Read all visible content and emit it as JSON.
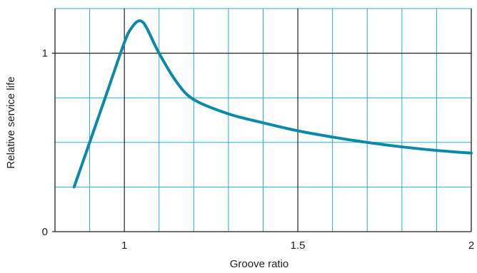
{
  "chart_data": {
    "type": "line",
    "title": "",
    "xlabel": "Groove ratio",
    "ylabel": "Relative service life",
    "xlim": [
      0.8,
      2.0
    ],
    "ylim": [
      0,
      1.25
    ],
    "x_ticks": [
      {
        "value": 1.0,
        "label": "1"
      },
      {
        "value": 1.5,
        "label": "1.5"
      },
      {
        "value": 2.0,
        "label": "2"
      }
    ],
    "y_ticks": [
      {
        "value": 0,
        "label": "0"
      },
      {
        "value": 1,
        "label": "1"
      }
    ],
    "grid": true,
    "minor_x_step": 0.1,
    "minor_y_step": 0.25,
    "major_x": [
      1.0,
      1.5,
      2.0
    ],
    "major_y": [
      1.0
    ],
    "series": [
      {
        "color": "#0b8aa8",
        "x": [
          0.855,
          0.9,
          0.95,
          1.0,
          1.02,
          1.04,
          1.055,
          1.07,
          1.1,
          1.15,
          1.2,
          1.3,
          1.4,
          1.5,
          1.6,
          1.7,
          1.8,
          1.9,
          2.0
        ],
        "y": [
          0.25,
          0.5,
          0.78,
          1.06,
          1.14,
          1.18,
          1.17,
          1.12,
          1.0,
          0.84,
          0.74,
          0.66,
          0.61,
          0.565,
          0.53,
          0.5,
          0.475,
          0.455,
          0.44
        ]
      }
    ]
  },
  "colors": {
    "grid_minor": "#29abe2",
    "grid_major": "#231f20",
    "line": "#0b8aa8",
    "text": "#231f20"
  }
}
